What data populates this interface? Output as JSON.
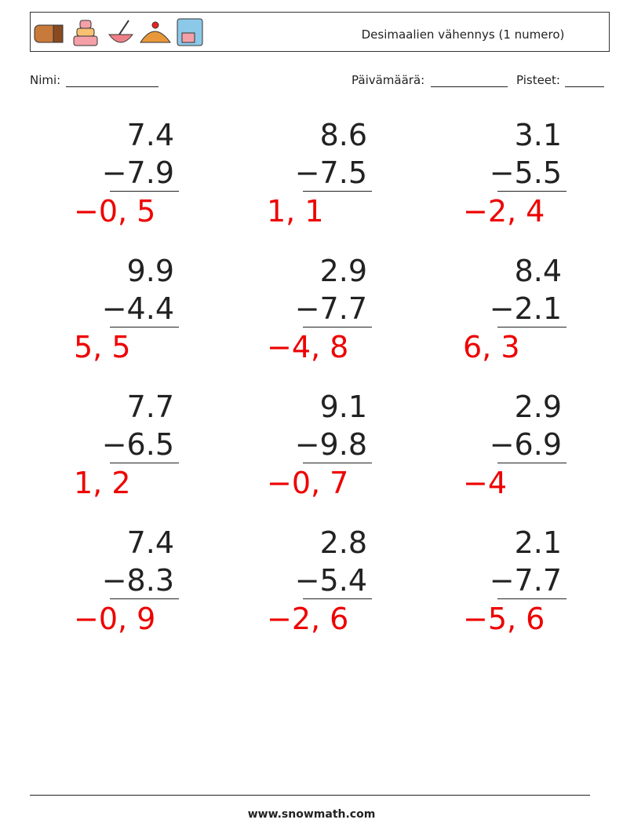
{
  "header": {
    "title": "Desimaalien vähennys (1 numero)"
  },
  "fields": {
    "name": "Nimi:",
    "date": "Päivämäärä:",
    "score": "Pisteet:"
  },
  "problems": [
    {
      "top": "7.4",
      "bottom": "−7.9",
      "answer": "−0, 5"
    },
    {
      "top": "8.6",
      "bottom": "−7.5",
      "answer": "1, 1"
    },
    {
      "top": "3.1",
      "bottom": "−5.5",
      "answer": "−2, 4"
    },
    {
      "top": "9.9",
      "bottom": "−4.4",
      "answer": "5, 5"
    },
    {
      "top": "2.9",
      "bottom": "−7.7",
      "answer": "−4, 8"
    },
    {
      "top": "8.4",
      "bottom": "−2.1",
      "answer": "6, 3"
    },
    {
      "top": "7.7",
      "bottom": "−6.5",
      "answer": "1, 2"
    },
    {
      "top": "9.1",
      "bottom": "−9.8",
      "answer": "−0, 7"
    },
    {
      "top": "2.9",
      "bottom": "−6.9",
      "answer": "−4"
    },
    {
      "top": "7.4",
      "bottom": "−8.3",
      "answer": "−0, 9"
    },
    {
      "top": "2.8",
      "bottom": "−5.4",
      "answer": "−2, 6"
    },
    {
      "top": "2.1",
      "bottom": "−7.7",
      "answer": "−5, 6"
    }
  ],
  "footer": {
    "site": "www.snowmath.com"
  }
}
